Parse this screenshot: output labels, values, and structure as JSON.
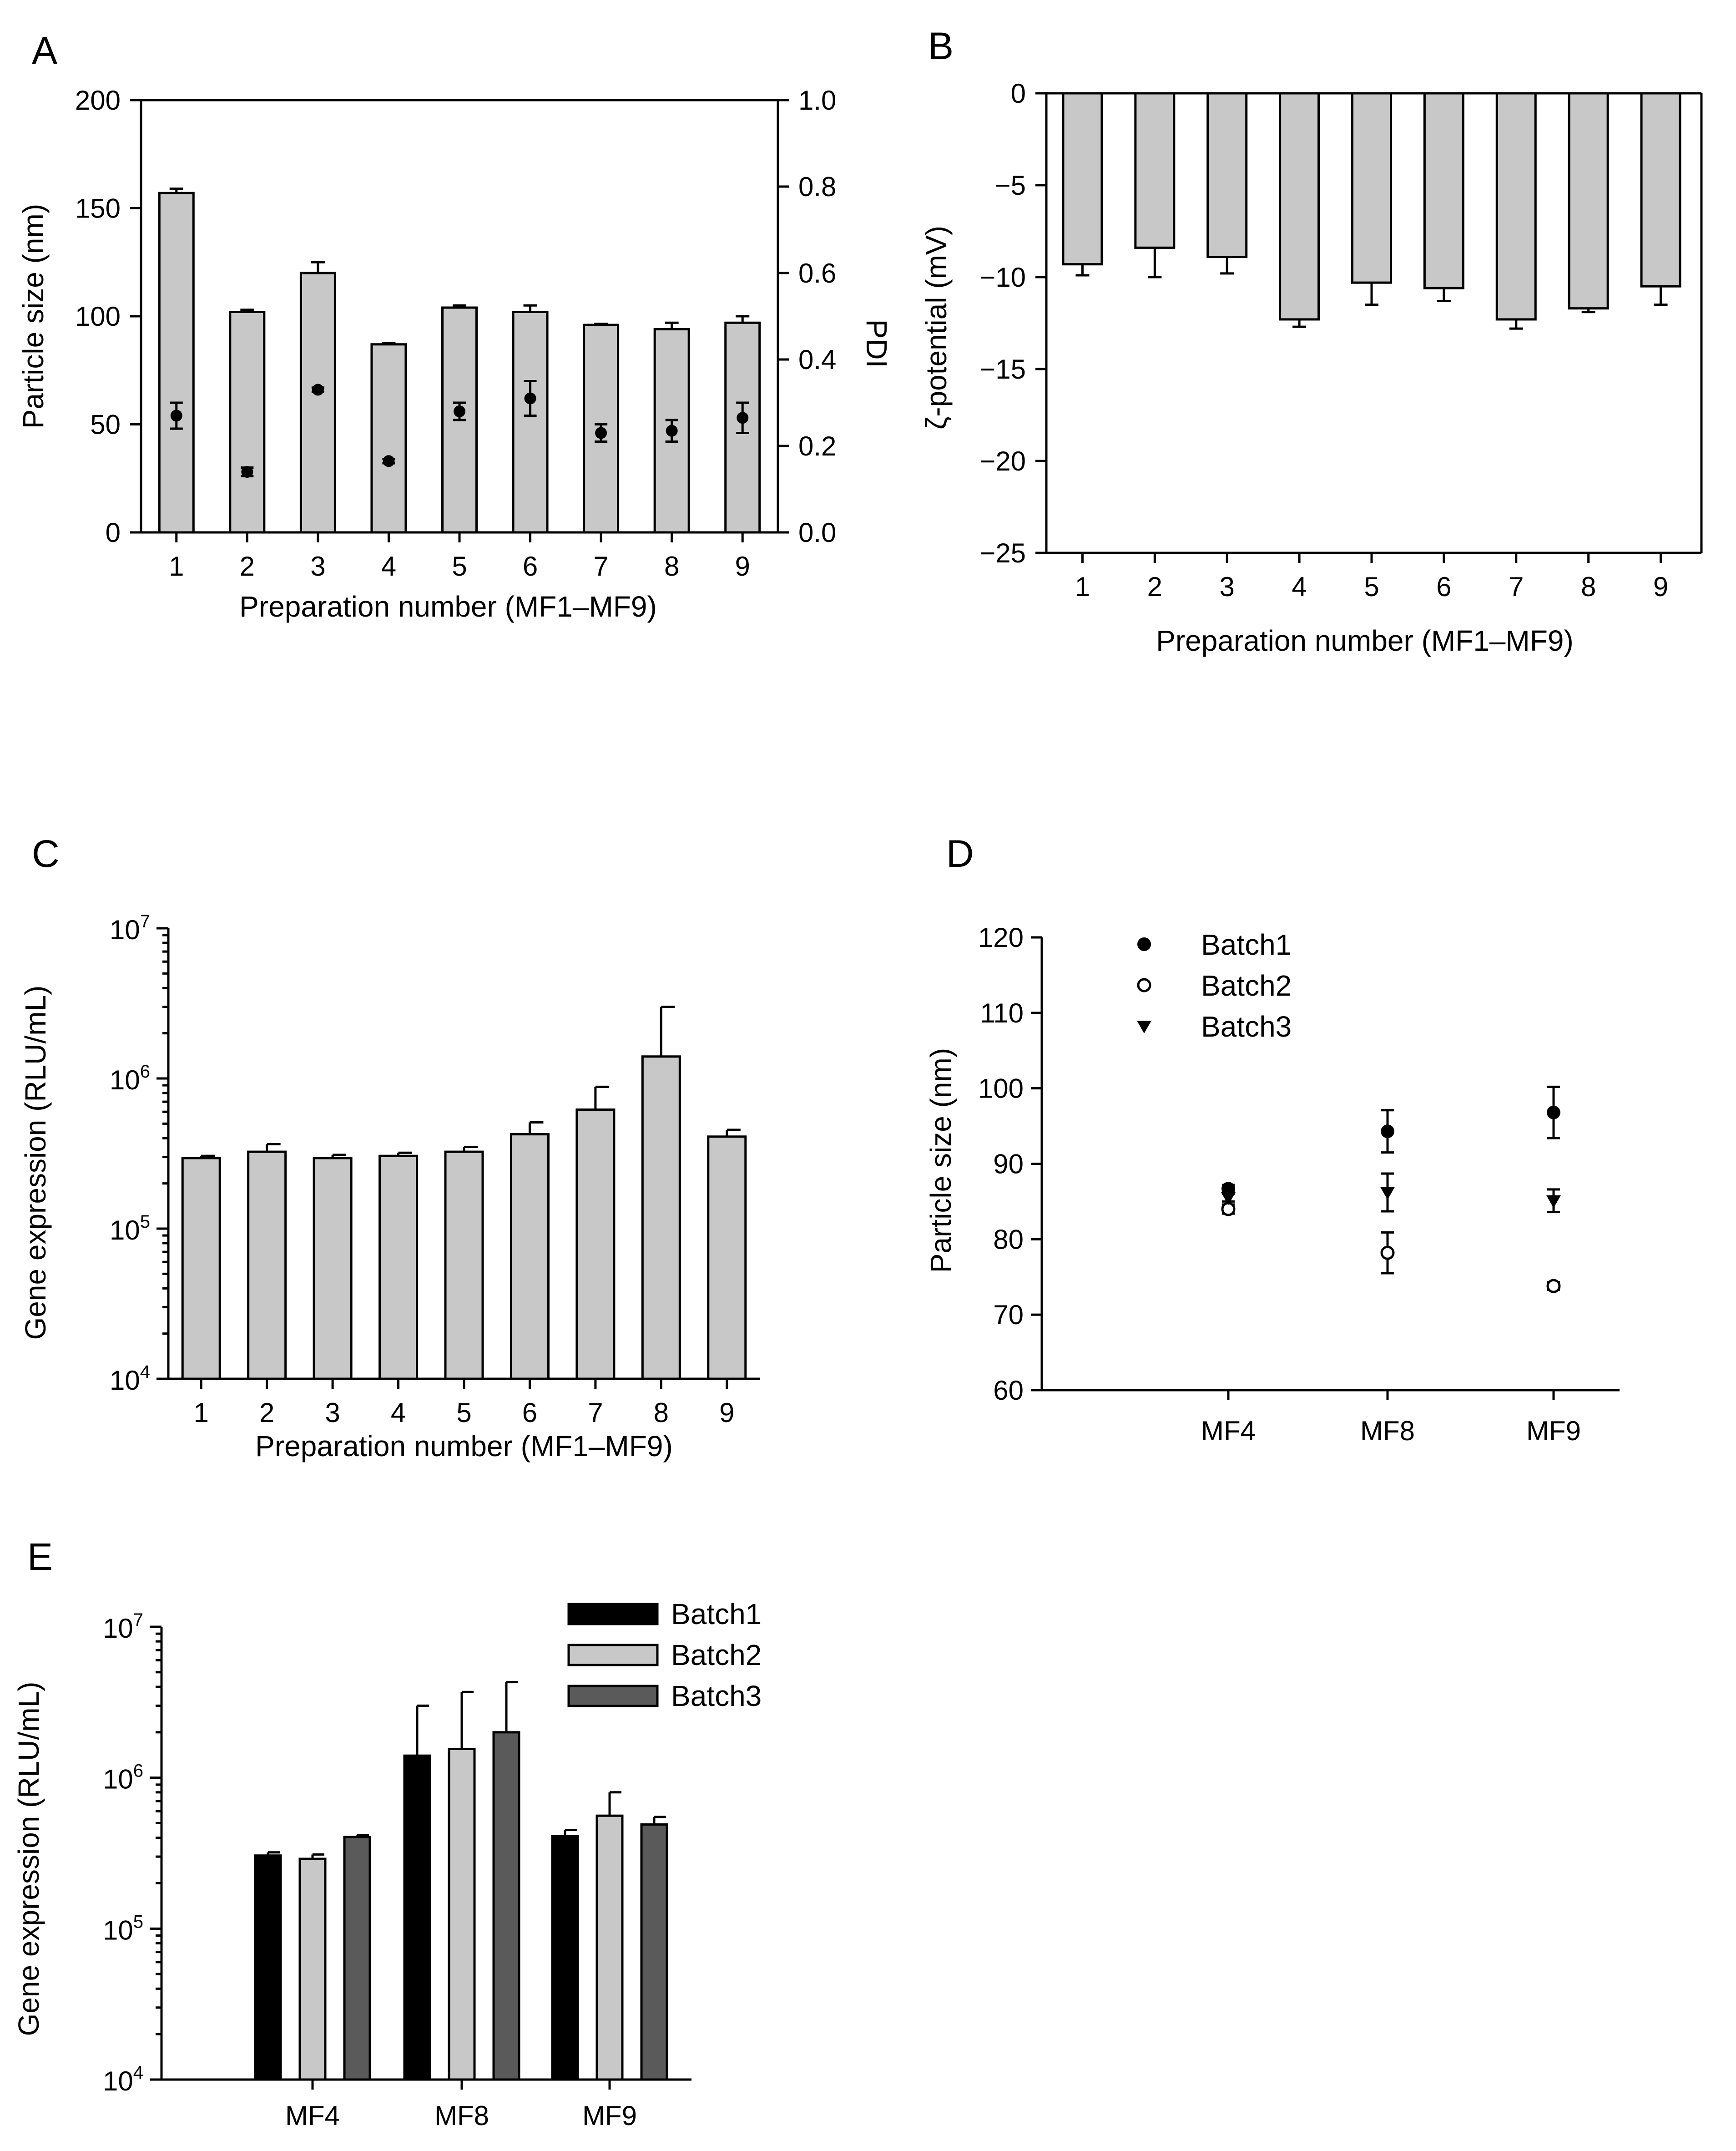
{
  "chart_data": [
    {
      "panel": "A",
      "type": "bar",
      "xlabel": "Preparation number (MF1–MF9)",
      "ylabel": "Particle size (nm)",
      "y2label": "PDI",
      "categories": [
        "1",
        "2",
        "3",
        "4",
        "5",
        "6",
        "7",
        "8",
        "9"
      ],
      "ylim": [
        0,
        200
      ],
      "yticks": [
        0,
        50,
        100,
        150,
        200
      ],
      "y2lim": [
        0,
        1.0
      ],
      "y2ticks": [
        "0.0",
        "0.2",
        "0.4",
        "0.6",
        "0.8",
        "1.0"
      ],
      "series": [
        {
          "kind": "bar",
          "axis": "left",
          "values": [
            157,
            102,
            120,
            87,
            104,
            102,
            96,
            94,
            97
          ],
          "errors": [
            2,
            1,
            5,
            0.5,
            1,
            3,
            0.5,
            3,
            3
          ]
        },
        {
          "kind": "point",
          "axis": "right",
          "values": [
            0.27,
            0.14,
            0.33,
            0.165,
            0.28,
            0.31,
            0.23,
            0.235,
            0.265
          ],
          "errors": [
            0.03,
            0.01,
            0.005,
            0.005,
            0.02,
            0.04,
            0.02,
            0.025,
            0.035
          ]
        }
      ],
      "colors": {
        "bar": "#c8c8c8",
        "point": "#000000"
      }
    },
    {
      "panel": "B",
      "type": "bar",
      "xlabel": "Preparation number (MF1–MF9)",
      "ylabel": "ζ-potential (mV)",
      "categories": [
        "1",
        "2",
        "3",
        "4",
        "5",
        "6",
        "7",
        "8",
        "9"
      ],
      "ylim": [
        -25,
        0
      ],
      "yticks": [
        0,
        -5,
        -10,
        -15,
        -20,
        -25
      ],
      "values": [
        -9.3,
        -8.4,
        -8.9,
        -12.3,
        -10.3,
        -10.6,
        -12.3,
        -11.7,
        -10.5
      ],
      "errors": [
        0.6,
        1.6,
        0.9,
        0.4,
        1.2,
        0.7,
        0.5,
        0.2,
        1.0
      ],
      "colors": {
        "bar": "#c8c8c8"
      }
    },
    {
      "panel": "C",
      "type": "bar",
      "scale": "log",
      "xlabel": "Preparation number (MF1–MF9)",
      "ylabel": "Gene expression (RLU/mL)",
      "categories": [
        "1",
        "2",
        "3",
        "4",
        "5",
        "6",
        "7",
        "8",
        "9"
      ],
      "ylim": [
        10000,
        10000000
      ],
      "yticks": [
        {
          "base": "10",
          "exp": "4"
        },
        {
          "base": "10",
          "exp": "5"
        },
        {
          "base": "10",
          "exp": "6"
        },
        {
          "base": "10",
          "exp": "7"
        }
      ],
      "values": [
        295000,
        325000,
        295000,
        305000,
        325000,
        425000,
        620000,
        1400000,
        410000
      ],
      "err_upper": [
        305000,
        365000,
        310000,
        320000,
        350000,
        510000,
        880000,
        3000000,
        455000
      ],
      "colors": {
        "bar": "#c8c8c8"
      }
    },
    {
      "panel": "D",
      "type": "scatter",
      "xlabel": "",
      "ylabel": "Particle size (nm)",
      "categories": [
        "MF4",
        "MF8",
        "MF9"
      ],
      "ylim": [
        60,
        120
      ],
      "yticks": [
        60,
        70,
        80,
        90,
        100,
        110,
        120
      ],
      "series": [
        {
          "name": "Batch1",
          "marker": "filled-circle",
          "values": [
            86.7,
            94.3,
            96.8
          ],
          "errors": [
            0.5,
            2.8,
            3.4
          ]
        },
        {
          "name": "Batch2",
          "marker": "open-circle",
          "values": [
            84.0,
            78.2,
            73.8
          ],
          "errors": [
            0.6,
            2.7,
            0.5
          ]
        },
        {
          "name": "Batch3",
          "marker": "filled-triangle-down",
          "values": [
            85.5,
            86.2,
            85.1
          ],
          "errors": [
            0.5,
            2.5,
            1.5
          ]
        }
      ],
      "legend": "top-left"
    },
    {
      "panel": "E",
      "type": "bar",
      "scale": "log",
      "xlabel": "",
      "ylabel": "Gene expression (RLU/mL)",
      "categories": [
        "MF4",
        "MF8",
        "MF9"
      ],
      "ylim": [
        10000,
        10000000
      ],
      "yticks": [
        {
          "base": "10",
          "exp": "4"
        },
        {
          "base": "10",
          "exp": "5"
        },
        {
          "base": "10",
          "exp": "6"
        },
        {
          "base": "10",
          "exp": "7"
        }
      ],
      "series": [
        {
          "name": "Batch1",
          "color": "#000000",
          "values": [
            305000,
            1400000,
            410000
          ],
          "err_upper": [
            320000,
            3000000,
            450000
          ]
        },
        {
          "name": "Batch2",
          "color": "#c8c8c8",
          "values": [
            290000,
            1550000,
            560000
          ],
          "err_upper": [
            310000,
            3700000,
            800000
          ]
        },
        {
          "name": "Batch3",
          "color": "#5a5a5a",
          "values": [
            405000,
            2000000,
            490000
          ],
          "err_upper": [
            415000,
            4300000,
            550000
          ]
        }
      ],
      "legend": "top-right"
    }
  ]
}
